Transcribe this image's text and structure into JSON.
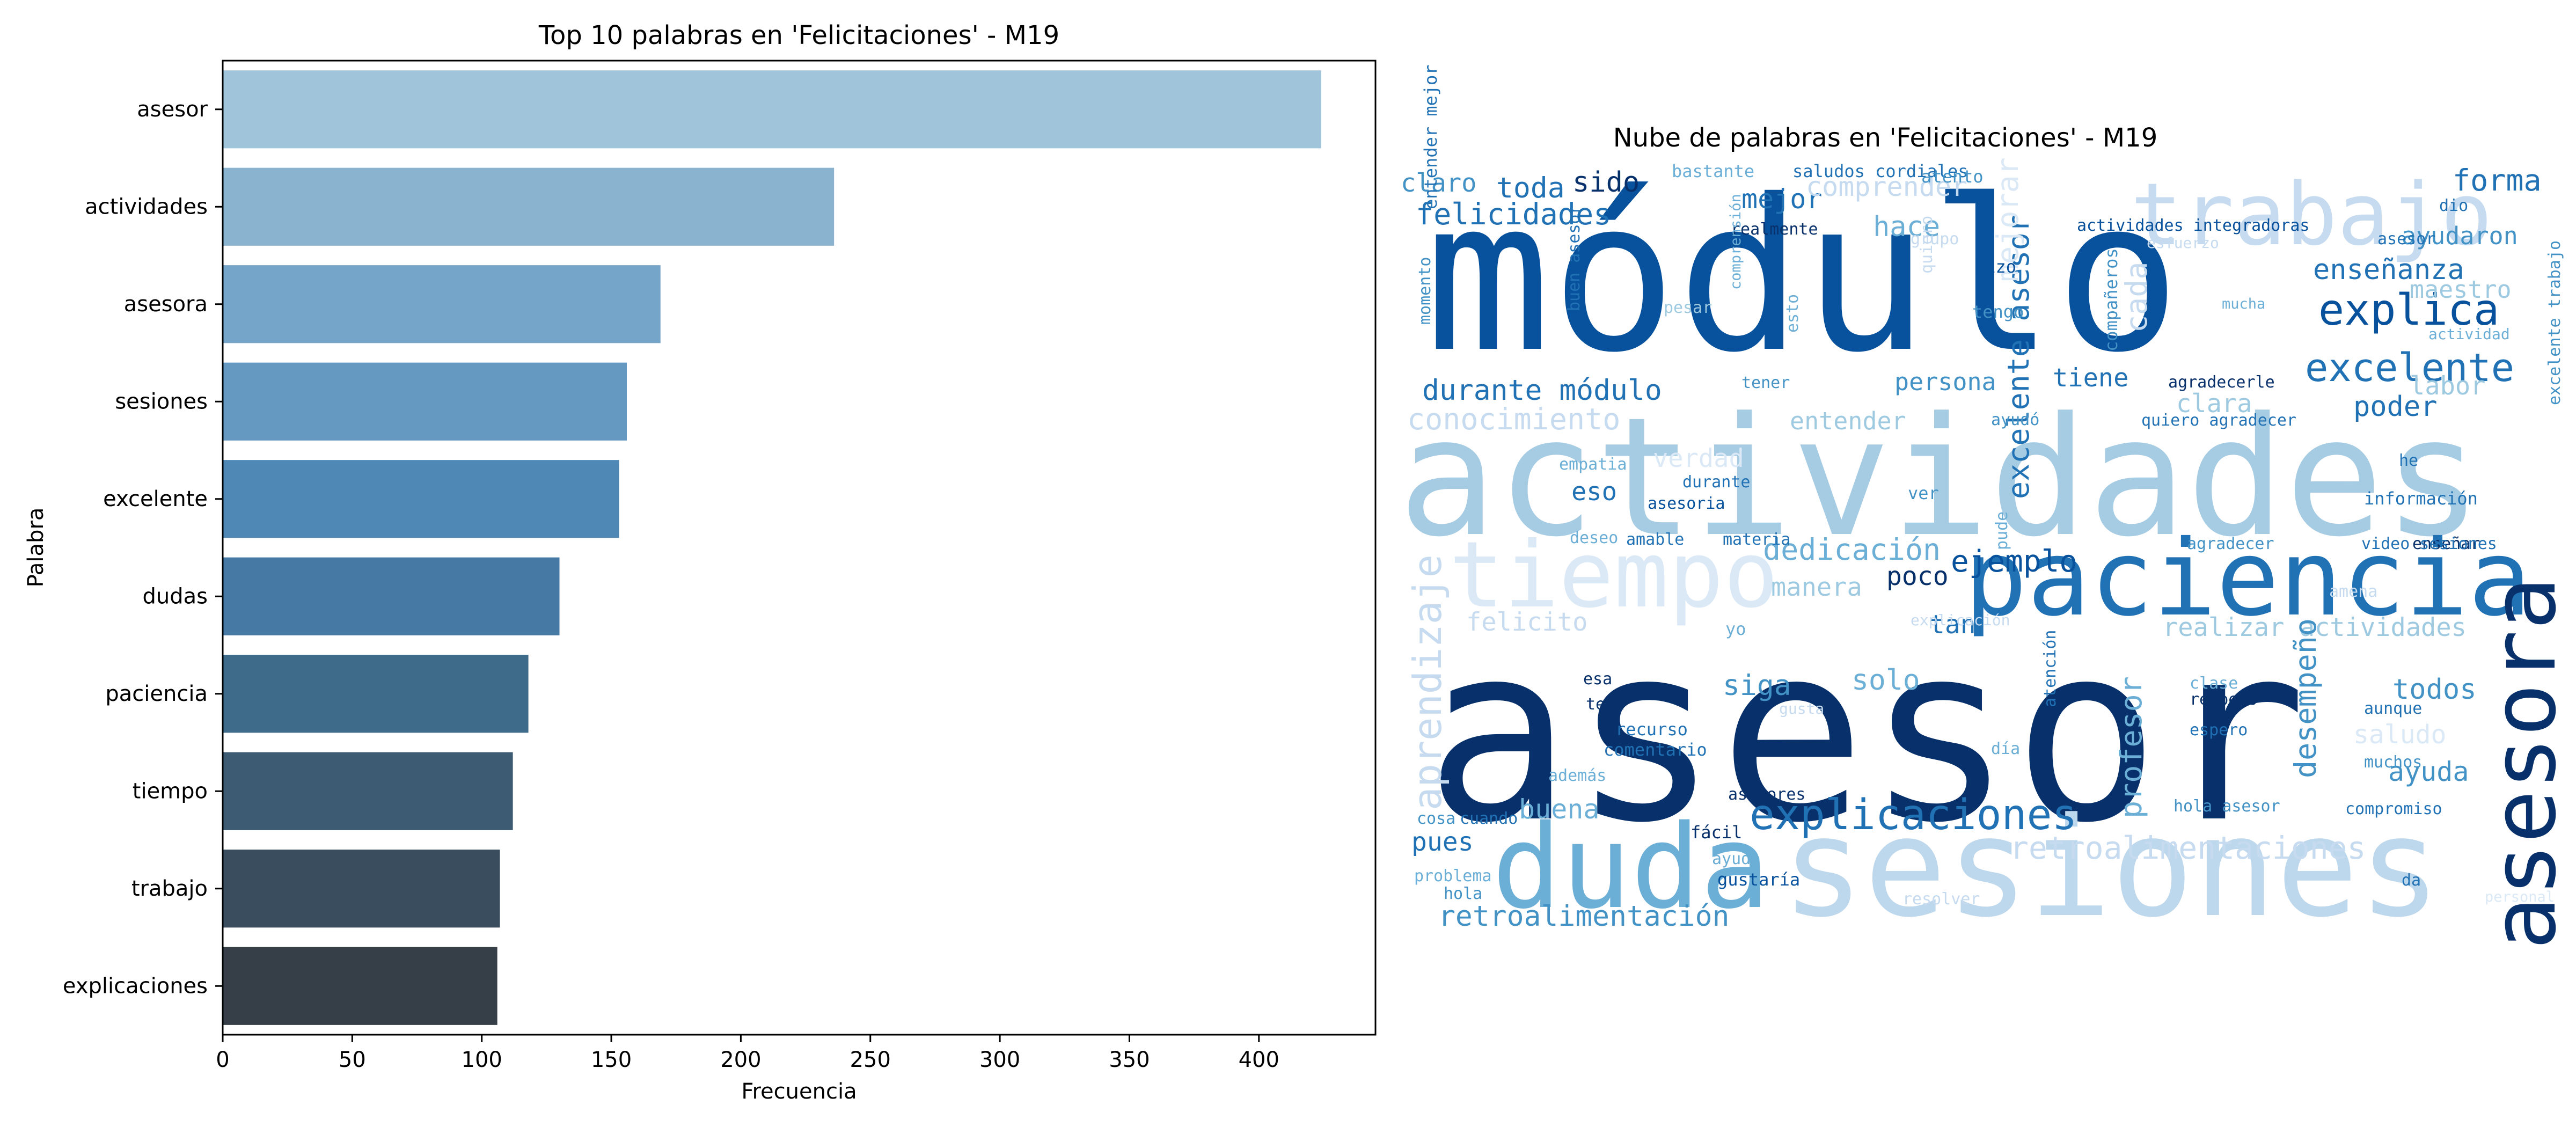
{
  "chart_data": [
    {
      "type": "bar",
      "orientation": "horizontal",
      "title": "Top 10 palabras en 'Felicitaciones' - M19",
      "xlabel": "Frecuencia",
      "ylabel": "Palabra",
      "xlim": [
        0,
        445
      ],
      "xticks": [
        0,
        50,
        100,
        150,
        200,
        250,
        300,
        350,
        400
      ],
      "grid": false,
      "categories": [
        "asesor",
        "actividades",
        "asesora",
        "sesiones",
        "excelente",
        "dudas",
        "paciencia",
        "tiempo",
        "trabajo",
        "explicaciones"
      ],
      "values": [
        424,
        236,
        169,
        156,
        153,
        130,
        118,
        112,
        107,
        106
      ],
      "colors": [
        "#a0c4d9",
        "#8ab3cf",
        "#75a5c8",
        "#6599c2",
        "#5088b5",
        "#4679a3",
        "#3f6b8a",
        "#3d5c74",
        "#394d5e",
        "#363f48"
      ]
    },
    {
      "type": "wordcloud",
      "title": "Nube de palabras en 'Felicitaciones' - M19",
      "words": [
        {
          "text": "asesor",
          "color": "#08306b"
        },
        {
          "text": "módulo",
          "color": "#08519c"
        },
        {
          "text": "actividades",
          "color": "#a6cce4"
        },
        {
          "text": "sesiones",
          "color": "#bdd7ec"
        },
        {
          "text": "paciencia",
          "color": "#2171b5"
        },
        {
          "text": "asesora",
          "color": "#08306b"
        },
        {
          "text": "duda",
          "color": "#6baed6"
        },
        {
          "text": "tiempo",
          "color": "#dbe9f6"
        },
        {
          "text": "trabajo",
          "color": "#c6dbef"
        },
        {
          "text": "explicaciones",
          "color": "#2171b5"
        },
        {
          "text": "aprendizaje",
          "color": "#c6dbef"
        },
        {
          "text": "excelente",
          "color": "#2171b5"
        },
        {
          "text": "explica",
          "color": "#08519c"
        },
        {
          "text": "retroalimentaciones",
          "color": "#c6dbef"
        },
        {
          "text": "ejemplo",
          "color": "#08519c"
        },
        {
          "text": "felicidades",
          "color": "#2171b5"
        },
        {
          "text": "durante módulo",
          "color": "#2171b5"
        },
        {
          "text": "dedicación",
          "color": "#6baed6"
        },
        {
          "text": "retroalimentación",
          "color": "#4292c6"
        },
        {
          "text": "conocimiento",
          "color": "#c6dbef"
        },
        {
          "text": "enseñanza",
          "color": "#2171b5"
        },
        {
          "text": "ayuda",
          "color": "#4292c6"
        },
        {
          "text": "realizar actividades",
          "color": "#9ecae1"
        },
        {
          "text": "forma",
          "color": "#2171b5"
        },
        {
          "text": "poder",
          "color": "#2171b5"
        },
        {
          "text": "mejor",
          "color": "#2171b5"
        },
        {
          "text": "persona",
          "color": "#4292c6"
        },
        {
          "text": "manera",
          "color": "#9ecae1"
        },
        {
          "text": "felicito",
          "color": "#c6dbef"
        },
        {
          "text": "comprender",
          "color": "#c6dbef"
        },
        {
          "text": "ayudaron",
          "color": "#4292c6"
        },
        {
          "text": "entender",
          "color": "#9ecae1"
        },
        {
          "text": "claro",
          "color": "#4292c6"
        },
        {
          "text": "toda",
          "color": "#2171b5"
        },
        {
          "text": "sido",
          "color": "#08306b"
        },
        {
          "text": "hace",
          "color": "#6baed6"
        },
        {
          "text": "clara",
          "color": "#9ecae1"
        },
        {
          "text": "tiene",
          "color": "#2171b5"
        },
        {
          "text": "siga",
          "color": "#4292c6"
        },
        {
          "text": "solo",
          "color": "#6baed6"
        },
        {
          "text": "todos",
          "color": "#4292c6"
        },
        {
          "text": "buena",
          "color": "#6baed6"
        },
        {
          "text": "pues",
          "color": "#2171b5"
        },
        {
          "text": "poco",
          "color": "#08306b"
        },
        {
          "text": "tan",
          "color": "#2171b5"
        },
        {
          "text": "eso",
          "color": "#2171b5"
        },
        {
          "text": "labor",
          "color": "#9ecae1"
        },
        {
          "text": "maestro",
          "color": "#9ecae1"
        },
        {
          "text": "cada",
          "color": "#c6dbef"
        },
        {
          "text": "desempeño",
          "color": "#4292c6"
        },
        {
          "text": "profesor",
          "color": "#6baed6"
        },
        {
          "text": "excelente asesor",
          "color": "#2171b5"
        },
        {
          "text": "mejorar",
          "color": "#dbe9f6"
        },
        {
          "text": "saludo",
          "color": "#dbe9f6"
        },
        {
          "text": "verdad",
          "color": "#dbe9f6"
        },
        {
          "text": "bastante",
          "color": "#6baed6"
        },
        {
          "text": "saludos cordiales",
          "color": "#2171b5"
        },
        {
          "text": "atento",
          "color": "#4292c6"
        },
        {
          "text": "actividades integradoras",
          "color": "#08519c"
        },
        {
          "text": "hizo",
          "color": "#08519c"
        },
        {
          "text": "tengo",
          "color": "#4292c6"
        },
        {
          "text": "esfuerzo",
          "color": "#c6dbef"
        },
        {
          "text": "compañeros",
          "color": "#4292c6"
        },
        {
          "text": "mucha",
          "color": "#6baed6"
        },
        {
          "text": "dio",
          "color": "#2171b5"
        },
        {
          "text": "actividad",
          "color": "#6baed6"
        },
        {
          "text": "agradecerle",
          "color": "#08306b"
        },
        {
          "text": "quiero agradecer",
          "color": "#2171b5"
        },
        {
          "text": "ayudó",
          "color": "#4292c6"
        },
        {
          "text": "tener",
          "color": "#4292c6"
        },
        {
          "text": "empatia",
          "color": "#6baed6"
        },
        {
          "text": "durante",
          "color": "#2171b5"
        },
        {
          "text": "asesoria",
          "color": "#08519c"
        },
        {
          "text": "ver",
          "color": "#4292c6"
        },
        {
          "text": "información",
          "color": "#2171b5"
        },
        {
          "text": "he",
          "color": "#2171b5"
        },
        {
          "text": "enseñar",
          "color": "#08306b"
        },
        {
          "text": "agradecer",
          "color": "#4292c6"
        },
        {
          "text": "video sesiones",
          "color": "#2171b5"
        },
        {
          "text": "amena",
          "color": "#c6dbef"
        },
        {
          "text": "deseo",
          "color": "#6baed6"
        },
        {
          "text": "amable",
          "color": "#2171b5"
        },
        {
          "text": "materia",
          "color": "#2171b5"
        },
        {
          "text": "yo",
          "color": "#6baed6"
        },
        {
          "text": "explicación",
          "color": "#c6dbef"
        },
        {
          "text": "esa",
          "color": "#08306b"
        },
        {
          "text": "tema",
          "color": "#08306b"
        },
        {
          "text": "recurso",
          "color": "#2171b5"
        },
        {
          "text": "comentario",
          "color": "#2171b5"
        },
        {
          "text": "día",
          "color": "#6baed6"
        },
        {
          "text": "además",
          "color": "#6baed6"
        },
        {
          "text": "asesores",
          "color": "#08306b"
        },
        {
          "text": "fácil",
          "color": "#08306b"
        },
        {
          "text": "gustaría",
          "color": "#08519c"
        },
        {
          "text": "cosa",
          "color": "#4292c6"
        },
        {
          "text": "cuando",
          "color": "#2171b5"
        },
        {
          "text": "clase",
          "color": "#6baed6"
        },
        {
          "text": "respeto",
          "color": "#08306b"
        },
        {
          "text": "espero",
          "color": "#2171b5"
        },
        {
          "text": "aunque",
          "color": "#2171b5"
        },
        {
          "text": "muchos",
          "color": "#4292c6"
        },
        {
          "text": "compromiso",
          "color": "#2171b5"
        },
        {
          "text": "hola asesor",
          "color": "#4292c6"
        },
        {
          "text": "problema",
          "color": "#6baed6"
        },
        {
          "text": "hola",
          "color": "#4292c6"
        },
        {
          "text": "ayudo",
          "color": "#6baed6"
        },
        {
          "text": "da",
          "color": "#2171b5"
        },
        {
          "text": "resolver",
          "color": "#c6dbef"
        },
        {
          "text": "personal",
          "color": "#dbe9f6"
        },
        {
          "text": "realmente",
          "color": "#08306b"
        },
        {
          "text": "buen asesor",
          "color": "#2171b5"
        },
        {
          "text": "entender mejor",
          "color": "#2171b5"
        },
        {
          "text": "momento",
          "color": "#4292c6"
        },
        {
          "text": "atención",
          "color": "#2171b5"
        },
        {
          "text": "pude",
          "color": "#6baed6"
        },
        {
          "text": "pesar",
          "color": "#9ecae1"
        },
        {
          "text": "grupo",
          "color": "#c6dbef"
        },
        {
          "text": "comprensión",
          "color": "#6baed6"
        },
        {
          "text": "esto",
          "color": "#6baed6"
        },
        {
          "text": "quiero",
          "color": "#c6dbef"
        },
        {
          "text": "gusta",
          "color": "#c6dbef"
        },
        {
          "text": "excelente trabajo",
          "color": "#4292c6"
        },
        {
          "text": "asesor",
          "color": "#2171b5"
        }
      ]
    }
  ]
}
